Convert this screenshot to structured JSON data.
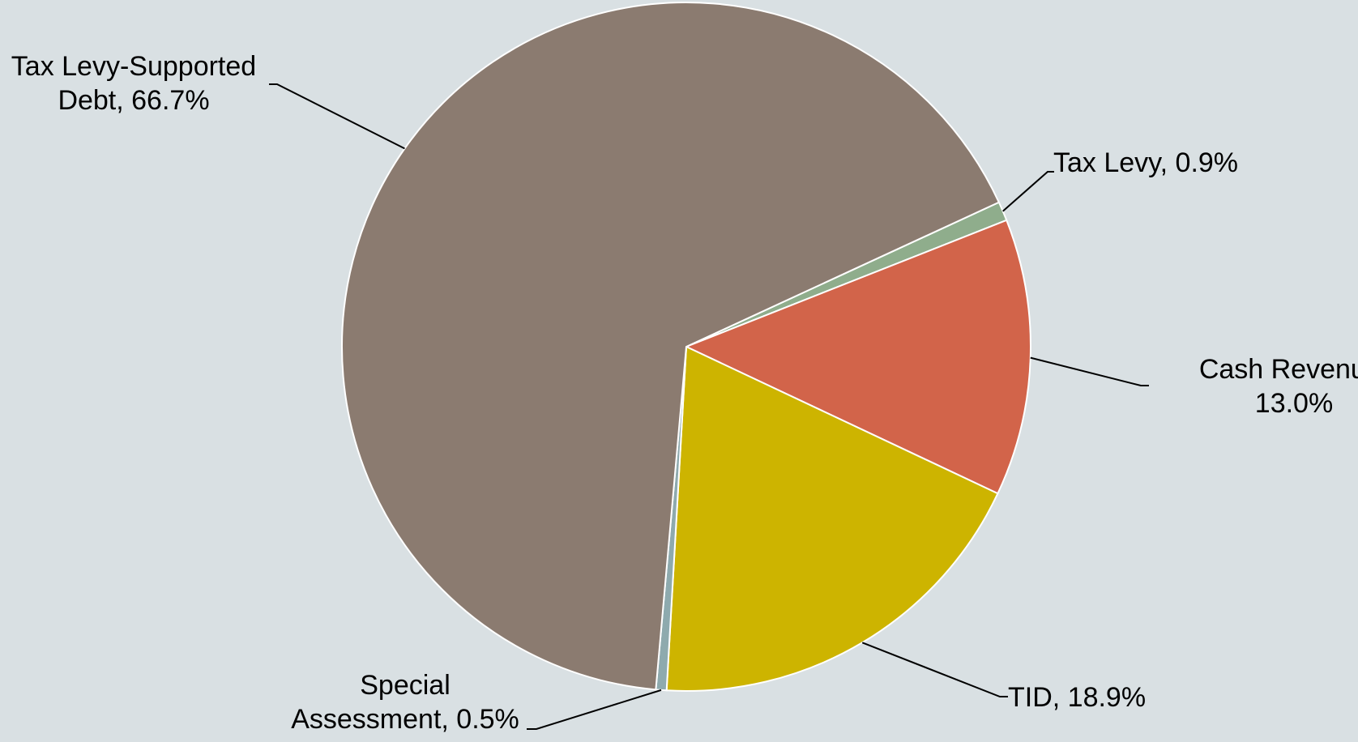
{
  "chart_data": {
    "type": "pie",
    "title": "",
    "start_angle_deg": 90,
    "direction": "clockwise",
    "slices": [
      {
        "category": "Tax Levy",
        "value": 0.9,
        "color": "#8fad8c",
        "label": [
          "Tax Levy, 0.9%"
        ]
      },
      {
        "category": "Cash Revenue",
        "value": 13.0,
        "color": "#d2644a",
        "label": [
          "Cash Revenue,",
          "13.0%"
        ]
      },
      {
        "category": "TID",
        "value": 18.9,
        "color": "#cdb400",
        "label": [
          "TID, 18.9%"
        ]
      },
      {
        "category": "Special Assessment",
        "value": 0.5,
        "color": "#8eaaae",
        "label": [
          "Special",
          "Assessment, 0.5%"
        ]
      },
      {
        "category": "Tax Levy-Supported Debt",
        "value": 66.7,
        "color": "#8b7b70",
        "label": [
          "Tax Levy-Supported",
          "Debt, 66.7%"
        ]
      }
    ],
    "data_labels": "category, percent",
    "legend": "none",
    "background": "#d9e0e3"
  }
}
